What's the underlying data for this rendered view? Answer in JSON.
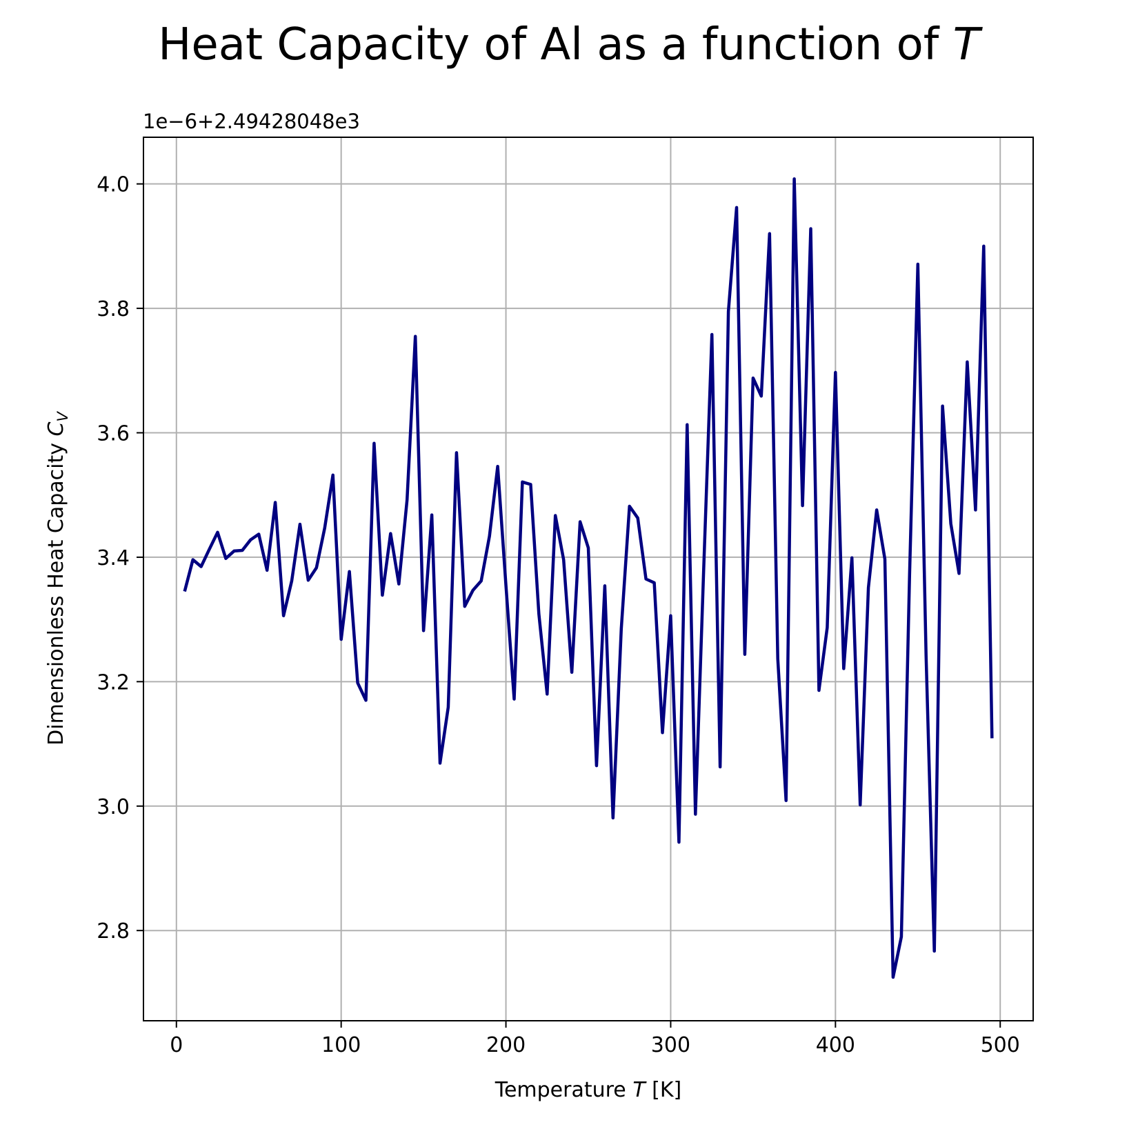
{
  "chart_data": {
    "type": "line",
    "title_prefix": "Heat Capacity of Al as a function of ",
    "title_var": "T",
    "offset_text": "1e−6+2.49428048e3",
    "xlabel_prefix": "Temperature ",
    "xlabel_var": "T",
    "xlabel_suffix": " [K]",
    "ylabel_prefix": "Dimensionless Heat Capacity ",
    "ylabel_var": "C",
    "ylabel_sub": "V",
    "xlim": [
      -20,
      520
    ],
    "ylim": [
      2.655,
      4.075
    ],
    "xticks": [
      0,
      100,
      200,
      300,
      400,
      500
    ],
    "yticks": [
      2.8,
      3.0,
      3.2,
      3.4,
      3.6,
      3.8,
      4.0
    ],
    "xtick_labels": [
      "0",
      "100",
      "200",
      "300",
      "400",
      "500"
    ],
    "ytick_labels": [
      "2.8",
      "3.0",
      "3.2",
      "3.4",
      "3.6",
      "3.8",
      "4.0"
    ],
    "grid": true,
    "line_color": "#000080",
    "grid_color": "#b0b0b0",
    "series": [
      {
        "x": [
          5,
          10,
          15,
          20,
          25,
          30,
          35,
          40,
          45,
          50,
          55,
          60,
          65,
          70,
          75,
          80,
          85,
          90,
          95,
          100,
          105,
          110,
          115,
          120,
          125,
          130,
          135,
          140,
          145,
          150,
          155,
          160,
          165,
          170,
          175,
          180,
          185,
          190,
          195,
          200,
          205,
          210,
          215,
          220,
          225,
          230,
          235,
          240,
          245,
          250,
          255,
          260,
          265,
          270,
          275,
          280,
          285,
          290,
          295,
          300,
          305,
          310,
          315,
          320,
          325,
          330,
          335,
          340,
          345,
          350,
          355,
          360,
          365,
          370,
          375,
          380,
          385,
          390,
          395,
          400,
          405,
          410,
          415,
          420,
          425,
          430,
          435,
          440,
          445,
          450,
          455,
          460,
          465,
          470,
          475,
          480,
          485,
          490,
          495
        ],
        "y": [
          3.345,
          3.396,
          3.385,
          3.413,
          3.44,
          3.398,
          3.41,
          3.411,
          3.428,
          3.437,
          3.379,
          3.488,
          3.306,
          3.362,
          3.453,
          3.363,
          3.383,
          3.447,
          3.532,
          3.268,
          3.377,
          3.198,
          3.17,
          3.583,
          3.339,
          3.438,
          3.357,
          3.492,
          3.755,
          3.282,
          3.468,
          3.069,
          3.159,
          3.568,
          3.321,
          3.347,
          3.362,
          3.434,
          3.546,
          3.354,
          3.172,
          3.521,
          3.517,
          3.309,
          3.18,
          3.467,
          3.396,
          3.215,
          3.457,
          3.415,
          3.065,
          3.354,
          2.981,
          3.285,
          3.482,
          3.463,
          3.365,
          3.359,
          3.118,
          3.306,
          2.942,
          3.613,
          2.987,
          3.378,
          3.758,
          3.063,
          3.795,
          3.962,
          3.244,
          3.688,
          3.659,
          3.92,
          3.237,
          3.009,
          4.008,
          3.483,
          3.928,
          3.186,
          3.287,
          3.697,
          3.221,
          3.399,
          3.002,
          3.351,
          3.476,
          3.397,
          2.725,
          2.79,
          3.372,
          3.871,
          3.243,
          2.767,
          3.643,
          3.454,
          3.374,
          3.714,
          3.476,
          3.9,
          3.109
        ]
      }
    ]
  }
}
